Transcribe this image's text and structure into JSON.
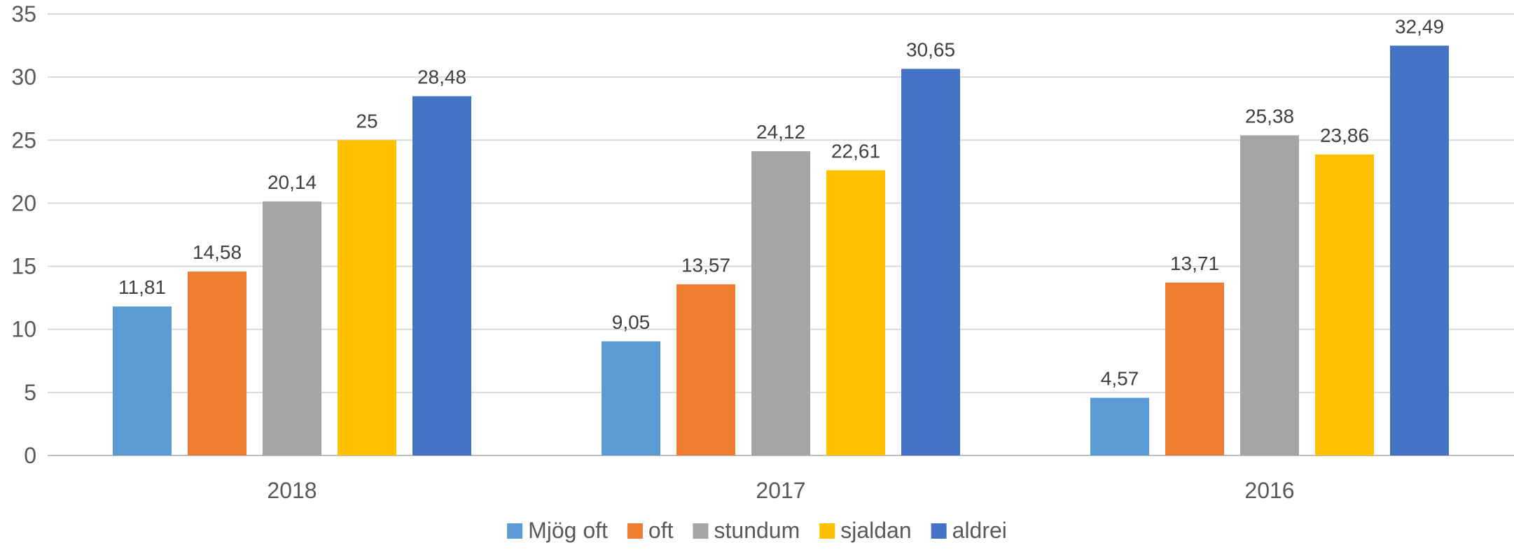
{
  "chart_data": {
    "type": "bar",
    "categories": [
      "2018",
      "2017",
      "2016"
    ],
    "series": [
      {
        "name": "Mjög oft",
        "color": "#5B9BD5",
        "values": [
          11.81,
          9.05,
          4.57
        ],
        "labels": [
          "11,81",
          "9,05",
          "4,57"
        ]
      },
      {
        "name": "oft",
        "color": "#ED7D31",
        "values": [
          14.58,
          13.57,
          13.71
        ],
        "labels": [
          "14,58",
          "13,57",
          "13,71"
        ]
      },
      {
        "name": "stundum",
        "color": "#A5A5A5",
        "values": [
          20.14,
          24.12,
          25.38
        ],
        "labels": [
          "20,14",
          "24,12",
          "25,38"
        ]
      },
      {
        "name": "sjaldan",
        "color": "#FFC000",
        "values": [
          25,
          22.61,
          23.86
        ],
        "labels": [
          "25",
          "22,61",
          "23,86"
        ]
      },
      {
        "name": "aldrei",
        "color": "#4472C4",
        "values": [
          28.48,
          30.65,
          32.49
        ],
        "labels": [
          "28,48",
          "30,65",
          "32,49"
        ]
      }
    ],
    "ylim": [
      0,
      35
    ],
    "yticks": [
      0,
      5,
      10,
      15,
      20,
      25,
      30,
      35
    ],
    "grid": true,
    "legend": "bottom"
  }
}
